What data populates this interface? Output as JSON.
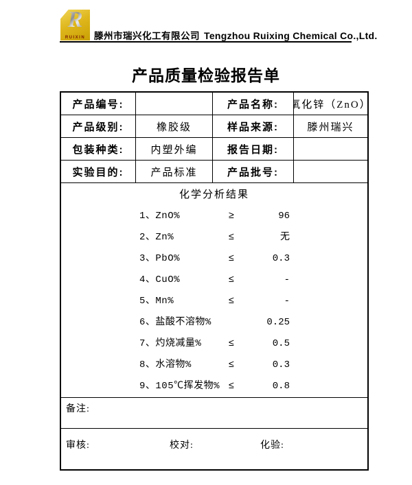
{
  "header": {
    "logo": {
      "letter": "R",
      "brand": "RUIXIN",
      "bg_color": "#dfb71d",
      "brand_color": "#7c1800"
    },
    "company_cn": "滕州市瑞兴化工有限公司",
    "company_en": "Tengzhou Ruixing Chemical Co.,Ltd."
  },
  "title": "产品质量检验报告单",
  "info": {
    "rows": [
      [
        {
          "label": "产品编号:",
          "value": ""
        },
        {
          "label": "产品名称:",
          "value": "氧化锌（ZnO）"
        }
      ],
      [
        {
          "label": "产品级别:",
          "value": "橡胶级"
        },
        {
          "label": "样品来源:",
          "value": "滕州瑞兴"
        }
      ],
      [
        {
          "label": "包装种类:",
          "value": "内塑外编"
        },
        {
          "label": "报告日期:",
          "value": ""
        }
      ],
      [
        {
          "label": "实验目的:",
          "value": "产品标准"
        },
        {
          "label": "产品批号:",
          "value": ""
        }
      ]
    ]
  },
  "analysis": {
    "title": "化学分析结果",
    "items": [
      {
        "name": "1、ZnO%",
        "relation": "≥",
        "value": "96"
      },
      {
        "name": "2、Zn%",
        "relation": "≤",
        "value": "无"
      },
      {
        "name": "3、PbO%",
        "relation": "≤",
        "value": "0.3"
      },
      {
        "name": "4、CuO%",
        "relation": "≤",
        "value": "-"
      },
      {
        "name": "5、Mn%",
        "relation": "≤",
        "value": "-"
      },
      {
        "name": "6、盐酸不溶物%",
        "relation": "",
        "value": "0.25"
      },
      {
        "name": "7、灼烧减量%",
        "relation": "≤",
        "value": "0.5"
      },
      {
        "name": "8、水溶物%",
        "relation": "≤",
        "value": "0.3"
      },
      {
        "name": "9、105℃挥发物%",
        "relation": "≤",
        "value": "0.8"
      }
    ]
  },
  "remarks_label": "备注:",
  "signatures": {
    "review": "审核:",
    "proofread": "校对:",
    "assay": "化验:"
  }
}
